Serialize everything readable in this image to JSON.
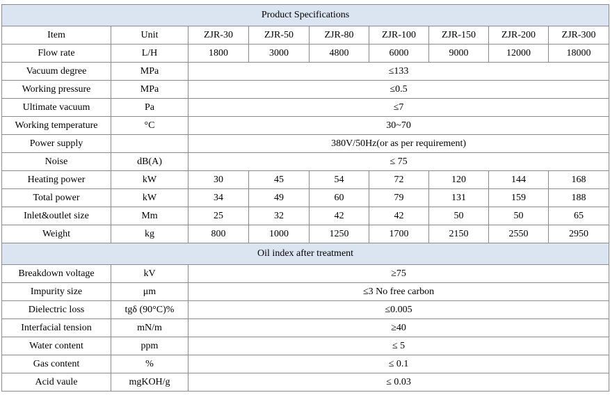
{
  "spec_title": "Product Specifications",
  "columns": [
    "Item",
    "Unit",
    "ZJR-30",
    "ZJR-50",
    "ZJR-80",
    "ZJR-100",
    "ZJR-150",
    "ZJR-200",
    "ZJR-300"
  ],
  "spec_rows": [
    {
      "item": "Flow rate",
      "unit": "L/H",
      "values": [
        "1800",
        "3000",
        "4800",
        "6000",
        "9000",
        "12000",
        "18000"
      ]
    },
    {
      "item": "Vacuum degree",
      "unit": "MPa",
      "value": "≤133"
    },
    {
      "item": "Working pressure",
      "unit": "MPa",
      "value": "≤0.5"
    },
    {
      "item": "Ultimate vacuum",
      "unit": "Pa",
      "value": "≤7"
    },
    {
      "item": "Working temperature",
      "unit": "°C",
      "value": "30~70"
    },
    {
      "item": "Power supply",
      "unit": "",
      "value": "380V/50Hz(or as per requirement)"
    },
    {
      "item": "Noise",
      "unit": "dB(A)",
      "value": "≤ 75"
    },
    {
      "item": "Heating power",
      "unit": "kW",
      "values": [
        "30",
        "45",
        "54",
        "72",
        "120",
        "144",
        "168"
      ]
    },
    {
      "item": "Total power",
      "unit": "kW",
      "values": [
        "34",
        "49",
        "60",
        "79",
        "131",
        "159",
        "188"
      ]
    },
    {
      "item": "Inlet&outlet size",
      "unit": "Mm",
      "values": [
        "25",
        "32",
        "42",
        "42",
        "50",
        "50",
        "65"
      ]
    },
    {
      "item": "Weight",
      "unit": "kg",
      "values": [
        "800",
        "1000",
        "1250",
        "1700",
        "2150",
        "2550",
        "2950"
      ]
    }
  ],
  "oil_title": "Oil index after treatment",
  "oil_rows": [
    {
      "item": "Breakdown voltage",
      "unit": "kV",
      "value": "≥75"
    },
    {
      "item": "Impurity size",
      "unit": "μm",
      "value": "≤3 No free carbon"
    },
    {
      "item": "Dielectric loss",
      "unit": "tgδ (90°C)%",
      "value": "≤0.005"
    },
    {
      "item": "Interfacial tension",
      "unit": "mN/m",
      "value": "≥40"
    },
    {
      "item": "Water content",
      "unit": "ppm",
      "value": "≤ 5"
    },
    {
      "item": "Gas content",
      "unit": "%",
      "value": "≤ 0.1"
    },
    {
      "item": "Acid vaule",
      "unit": "mgKOH/g",
      "value": "≤ 0.03"
    }
  ]
}
